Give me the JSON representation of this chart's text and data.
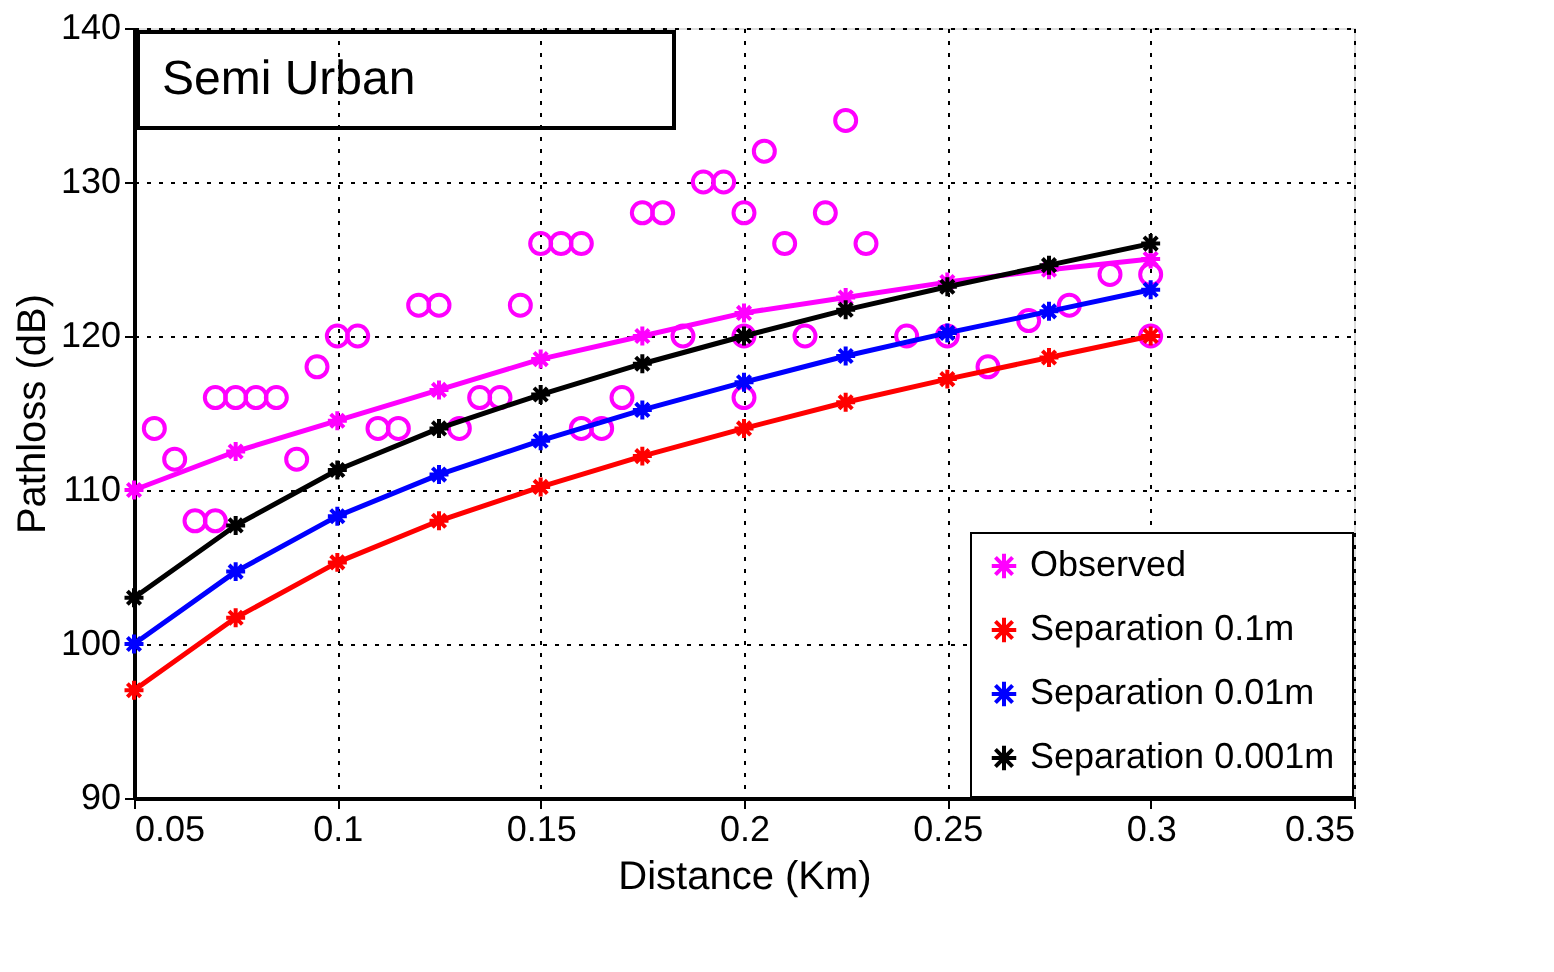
{
  "chart_data": {
    "type": "line",
    "xlabel": "Distance (Km)",
    "ylabel": "Pathloss (dB)",
    "annotations": [
      "Semi Urban"
    ],
    "xlim": [
      0.05,
      0.35
    ],
    "xticks": [
      0.05,
      0.1,
      0.15,
      0.2,
      0.25,
      0.3,
      0.35
    ],
    "ylim": [
      90,
      140
    ],
    "yticks": [
      90,
      100,
      110,
      120,
      130,
      140
    ],
    "grid": true,
    "legend": "bottom right",
    "marker": "cross",
    "line_style": "solid",
    "series": [
      {
        "type": "scatter",
        "marker": "circle",
        "color": "#ff00ff",
        "x": [
          0.055,
          0.06,
          0.065,
          0.07,
          0.07,
          0.075,
          0.08,
          0.085,
          0.09,
          0.095,
          0.1,
          0.105,
          0.11,
          0.115,
          0.12,
          0.125,
          0.13,
          0.135,
          0.14,
          0.145,
          0.15,
          0.155,
          0.16,
          0.16,
          0.165,
          0.17,
          0.175,
          0.18,
          0.185,
          0.19,
          0.195,
          0.2,
          0.2,
          0.2,
          0.205,
          0.21,
          0.215,
          0.22,
          0.225,
          0.23,
          0.24,
          0.25,
          0.26,
          0.27,
          0.28,
          0.29,
          0.3,
          0.3
        ],
        "values": [
          114,
          112,
          108,
          116,
          108,
          116,
          116,
          116,
          112,
          118,
          120,
          120,
          114,
          114,
          122,
          122,
          114,
          116,
          116,
          122,
          126,
          126,
          126,
          114,
          114,
          116,
          128,
          128,
          120,
          130,
          130,
          128,
          116,
          120,
          132,
          126,
          120,
          128,
          134,
          126,
          120,
          120,
          118,
          121,
          122,
          124,
          120,
          124
        ]
      },
      {
        "name": "Observed",
        "color": "#ff00ff",
        "x": [
          0.05,
          0.075,
          0.1,
          0.125,
          0.15,
          0.175,
          0.2,
          0.225,
          0.25,
          0.275,
          0.3
        ],
        "values": [
          110,
          112.5,
          114.5,
          116.5,
          118.5,
          120,
          121.5,
          122.5,
          123.5,
          124.3,
          125
        ]
      },
      {
        "name": "Separation 0.1m",
        "color": "#ff0000",
        "x": [
          0.05,
          0.075,
          0.1,
          0.125,
          0.15,
          0.175,
          0.2,
          0.225,
          0.25,
          0.275,
          0.3
        ],
        "values": [
          97,
          101.7,
          105.3,
          108,
          110.2,
          112.2,
          114,
          115.7,
          117.2,
          118.6,
          120
        ]
      },
      {
        "name": "Separation 0.01m",
        "color": "#0000ff",
        "x": [
          0.05,
          0.075,
          0.1,
          0.125,
          0.15,
          0.175,
          0.2,
          0.225,
          0.25,
          0.275,
          0.3
        ],
        "values": [
          100,
          104.7,
          108.3,
          111,
          113.2,
          115.2,
          117,
          118.7,
          120.2,
          121.6,
          123
        ]
      },
      {
        "name": "Separation 0.001m",
        "color": "#000000",
        "x": [
          0.05,
          0.075,
          0.1,
          0.125,
          0.15,
          0.175,
          0.2,
          0.225,
          0.25,
          0.275,
          0.3
        ],
        "values": [
          103,
          107.7,
          111.3,
          114,
          116.2,
          118.2,
          120,
          121.7,
          123.2,
          124.6,
          126
        ]
      }
    ]
  }
}
